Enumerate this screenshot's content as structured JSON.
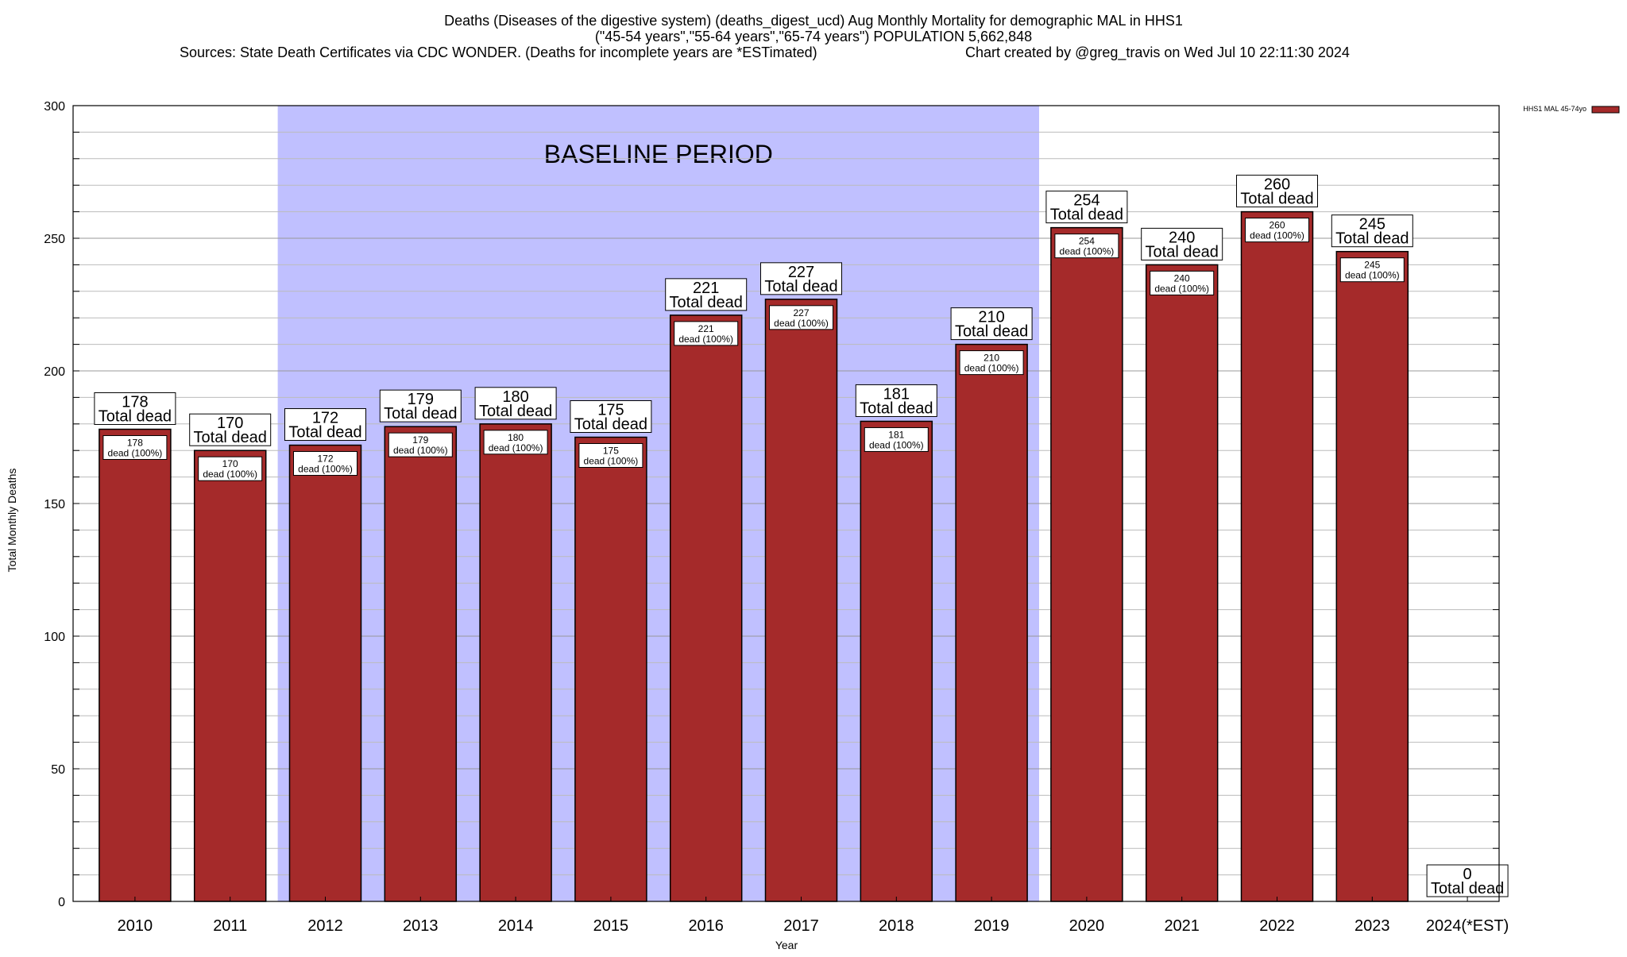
{
  "header": {
    "title_line1": "Deaths (Diseases of the digestive system) (deaths_digest_ucd) Aug Monthly Mortality for demographic MAL in HHS1",
    "title_line2": "(\"45-54 years\",\"55-64 years\",\"65-74 years\") POPULATION 5,662,848",
    "title_line3_left": "Sources: State Death Certificates via CDC WONDER. (Deaths for incomplete years are *ESTimated)",
    "title_line3_right": "Chart created by @greg_travis on Wed Jul 10 22:11:30 2024"
  },
  "chart_data": {
    "type": "bar",
    "categories": [
      "2010",
      "2011",
      "2012",
      "2013",
      "2014",
      "2015",
      "2016",
      "2017",
      "2018",
      "2019",
      "2020",
      "2021",
      "2022",
      "2023",
      "2024(*EST)"
    ],
    "series": [
      {
        "name": "HHS1 MAL 45-74yo",
        "values": [
          178,
          170,
          172,
          179,
          180,
          175,
          221,
          227,
          181,
          210,
          254,
          240,
          260,
          245,
          0
        ],
        "color": "#a52a2a"
      }
    ],
    "total_label_suffix": "Total dead",
    "inner_label_suffix": "dead (100%)",
    "xlabel": "Year",
    "ylabel": "Total Monthly Deaths",
    "ylim": [
      0,
      300
    ],
    "yticks": [
      0,
      50,
      100,
      150,
      200,
      250,
      300
    ],
    "grid": true,
    "legend_position": "top-right",
    "baseline_period": {
      "label": "BASELINE PERIOD",
      "from_category": "2012",
      "to_category": "2019",
      "color": "#c0c0ff"
    }
  }
}
